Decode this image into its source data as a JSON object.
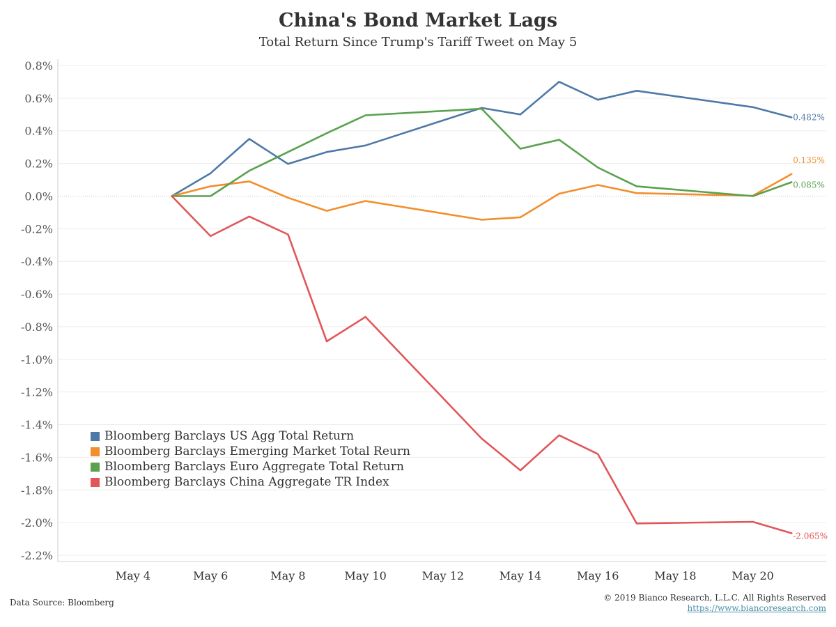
{
  "chart_data": {
    "type": "line",
    "title": "China's Bond Market Lags",
    "subtitle": "Total Return Since Trump's Tariff Tweet on May 5",
    "xlabel": "",
    "ylabel": "",
    "x": [
      "May 5",
      "May 6",
      "May 7",
      "May 8",
      "May 9",
      "May 10",
      "May 13",
      "May 14",
      "May 15",
      "May 16",
      "May 17",
      "May 20",
      "May 21"
    ],
    "x_ticks": [
      "May 4",
      "May 6",
      "May 8",
      "May 10",
      "May 12",
      "May 14",
      "May 16",
      "May 18",
      "May 20"
    ],
    "y_ticks": [
      "0.8%",
      "0.6%",
      "0.4%",
      "0.2%",
      "0.0%",
      "-0.2%",
      "-0.4%",
      "-0.6%",
      "-0.8%",
      "-1.0%",
      "-1.2%",
      "-1.4%",
      "-1.6%",
      "-1.8%",
      "-2.0%",
      "-2.2%"
    ],
    "ylim": [
      -2.2,
      0.8
    ],
    "legend_position": "bottom-left",
    "grid": true,
    "series": [
      {
        "name": "Bloomberg Barclays US Agg Total Return",
        "color": "#4e79a7",
        "values": [
          0,
          0.14,
          0.35,
          0.197,
          0.27,
          0.31,
          0.54,
          0.5,
          0.7,
          0.59,
          0.645,
          0.545,
          0.482
        ],
        "end_label": "0.482%"
      },
      {
        "name": "Bloomberg Barclays Emerging Market Total Reurn",
        "color": "#f28e2b",
        "values": [
          0,
          0.06,
          0.09,
          -0.01,
          -0.09,
          -0.03,
          -0.145,
          -0.13,
          0.015,
          0.068,
          0.018,
          0.002,
          0.135
        ],
        "end_label": "0.135%"
      },
      {
        "name": "Bloomberg Barclays Euro Aggregate Total Return",
        "color": "#59a14f",
        "values": [
          0,
          0.0,
          0.155,
          0.27,
          0.385,
          0.495,
          0.535,
          0.29,
          0.345,
          0.175,
          0.06,
          0.0,
          0.085
        ],
        "end_label": "0.085%"
      },
      {
        "name": "Bloomberg Barclays China Aggregate TR Index",
        "color": "#e15759",
        "values": [
          0,
          -0.245,
          -0.125,
          -0.235,
          -0.89,
          -0.74,
          -1.485,
          -1.68,
          -1.465,
          -1.58,
          -2.005,
          -1.995,
          -2.065
        ],
        "end_label": "-2.065%"
      }
    ]
  },
  "footer": {
    "source": "Data Source: Bloomberg",
    "copyright": "© 2019 Bianco Research, L.L.C. All Rights Reserved",
    "url": "https://www.biancoresearch.com"
  }
}
